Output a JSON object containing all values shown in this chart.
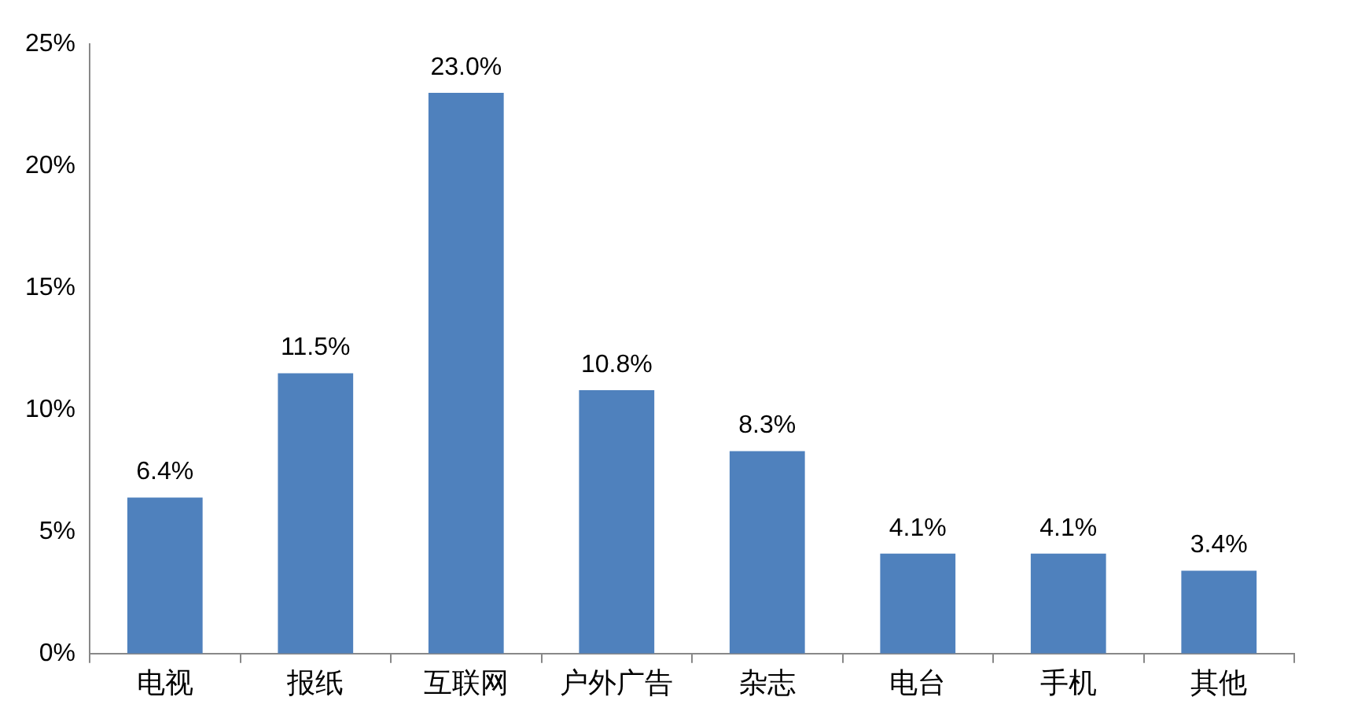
{
  "chart_data": {
    "type": "bar",
    "categories": [
      "电视",
      "报纸",
      "互联网",
      "户外广告",
      "杂志",
      "电台",
      "手机",
      "其他"
    ],
    "values": [
      6.4,
      11.5,
      23.0,
      10.8,
      8.3,
      4.1,
      4.1,
      3.4
    ],
    "value_labels": [
      "6.4%",
      "11.5%",
      "23.0%",
      "10.8%",
      "8.3%",
      "4.1%",
      "4.1%",
      "3.4%"
    ],
    "color": "#4f81bd",
    "ylim": [
      0,
      25
    ],
    "yticks": [
      {
        "value": 0,
        "label": "0%"
      },
      {
        "value": 5,
        "label": "5%"
      },
      {
        "value": 10,
        "label": "10%"
      },
      {
        "value": 15,
        "label": "15%"
      },
      {
        "value": 20,
        "label": "20%"
      },
      {
        "value": 25,
        "label": "25%"
      }
    ],
    "grid": false,
    "legend": false
  }
}
